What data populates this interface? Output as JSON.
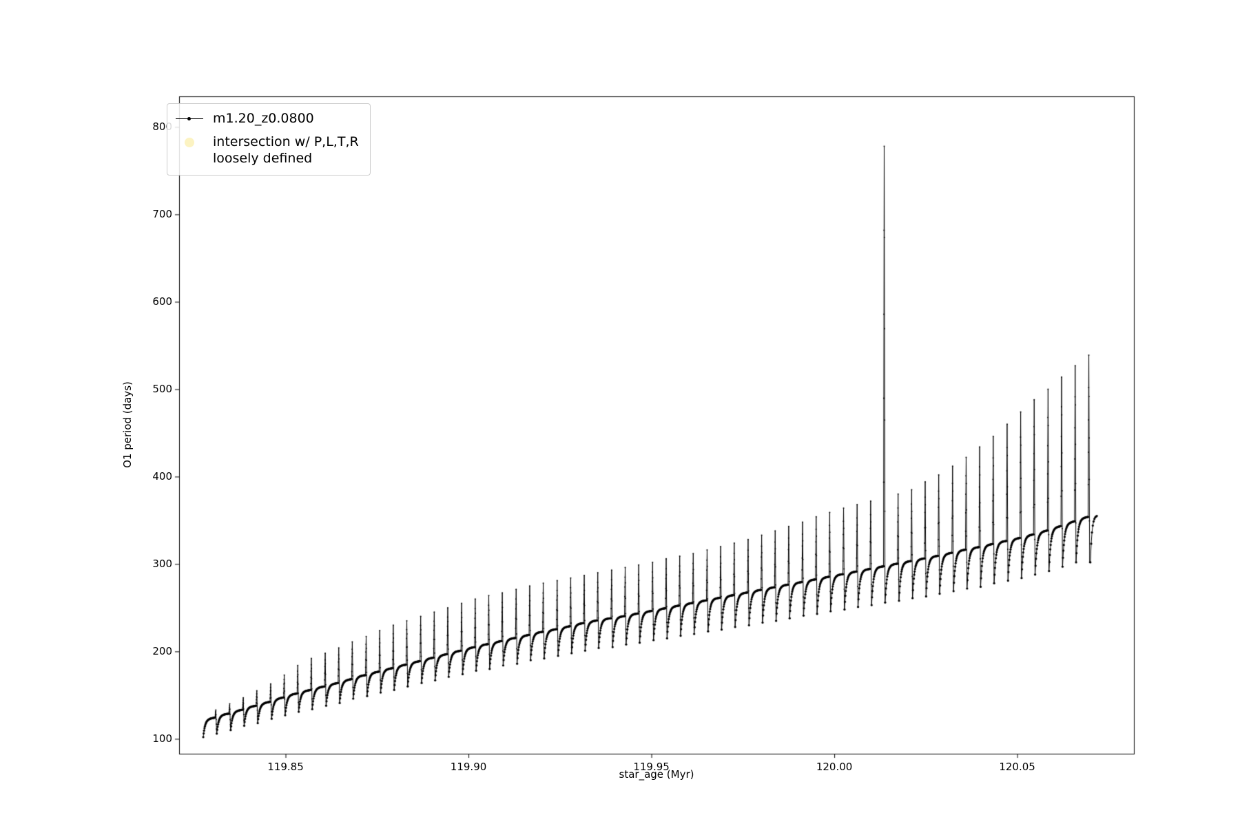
{
  "chart_data": {
    "type": "line",
    "title": "",
    "xlabel": "star_age (Myr)",
    "ylabel": "O1 period (days)",
    "xlim": [
      119.8209,
      120.0819
    ],
    "ylim": [
      83,
      835
    ],
    "xticks": [
      119.85,
      119.9,
      119.95,
      120.0,
      120.05
    ],
    "xtick_labels": [
      "119.85",
      "119.90",
      "119.95",
      "120.00",
      "120.05"
    ],
    "yticks": [
      100,
      200,
      300,
      400,
      500,
      600,
      700,
      800
    ],
    "ytick_labels": [
      "100",
      "200",
      "300",
      "400",
      "500",
      "600",
      "700",
      "800"
    ],
    "grid": false,
    "legend_position": "upper left",
    "background_color": "#ffffff",
    "series": [
      {
        "name": "m1.20_z0.0800",
        "color": "#000000",
        "marker": "point",
        "style": "line-with-dots"
      },
      {
        "name": "intersection w/ P,L,T,R\nloosely defined",
        "color": "#fcf3c2",
        "marker": "large-dot",
        "style": "scatter"
      }
    ],
    "pulsation_cycles": {
      "note": "sawtooth pulsation cycles: slow arc rising from dip to shoulder, then narrow spike to peak; anomalous tall spike near x=120.0135 reaching 778",
      "x": [
        119.8275,
        119.8312,
        119.835,
        119.8387,
        119.8424,
        119.8462,
        119.8499,
        119.8536,
        119.8573,
        119.8611,
        119.8648,
        119.8685,
        119.8723,
        119.876,
        119.8797,
        119.8834,
        119.8872,
        119.8909,
        119.8946,
        119.8984,
        119.9021,
        119.9058,
        119.9095,
        119.9133,
        119.917,
        119.9207,
        119.9245,
        119.9282,
        119.9319,
        119.9356,
        119.9394,
        119.9431,
        119.9468,
        119.9506,
        119.9543,
        119.958,
        119.9617,
        119.9655,
        119.9692,
        119.9729,
        119.9767,
        119.9804,
        119.9841,
        119.9878,
        119.9916,
        119.9953,
        119.999,
        120.0028,
        120.0065,
        120.0102,
        120.0139,
        120.0177,
        120.0214,
        120.0251,
        120.0288,
        120.0326,
        120.0363,
        120.04,
        120.0437,
        120.0475,
        120.0512,
        120.0549,
        120.0587,
        120.0624,
        120.0661
      ],
      "shoulder": [
        122,
        127,
        131,
        136,
        140,
        145,
        150,
        154,
        158,
        162,
        166,
        171,
        175,
        179,
        183,
        187,
        191,
        195,
        199,
        203,
        207,
        210,
        214,
        217,
        221,
        224,
        227,
        231,
        234,
        237,
        239,
        242,
        245,
        248,
        251,
        254,
        257,
        260,
        263,
        266,
        269,
        272,
        275,
        278,
        281,
        284,
        287,
        290,
        293,
        296,
        299,
        302,
        305,
        308,
        311,
        315,
        318,
        321,
        325,
        328,
        332,
        336,
        341,
        346,
        352
      ],
      "peak": [
        133,
        140,
        147,
        155,
        163,
        173,
        184,
        192,
        198,
        204,
        211,
        217,
        224,
        230,
        235,
        240,
        245,
        250,
        255,
        260,
        264,
        267,
        271,
        275,
        278,
        281,
        284,
        287,
        290,
        293,
        296,
        299,
        302,
        306,
        309,
        312,
        316,
        320,
        324,
        328,
        333,
        338,
        343,
        348,
        354,
        359,
        364,
        368,
        372,
        778,
        380,
        385,
        394,
        402,
        412,
        422,
        434,
        446,
        460,
        474,
        488,
        500,
        514,
        527,
        539
      ],
      "dip": [
        102,
        106,
        110,
        115,
        118,
        123,
        127,
        131,
        134,
        138,
        141,
        146,
        149,
        153,
        156,
        160,
        164,
        167,
        171,
        174,
        178,
        180,
        184,
        186,
        190,
        192,
        195,
        198,
        201,
        204,
        205,
        208,
        210,
        213,
        215,
        218,
        220,
        223,
        225,
        228,
        230,
        233,
        235,
        238,
        241,
        243,
        246,
        248,
        251,
        253,
        256,
        258,
        261,
        263,
        266,
        269,
        272,
        274,
        278,
        281,
        284,
        288,
        292,
        297,
        302
      ],
      "tail": {
        "x_start": 120.07,
        "x_step": 0.00022,
        "end_value": 356
      }
    }
  }
}
